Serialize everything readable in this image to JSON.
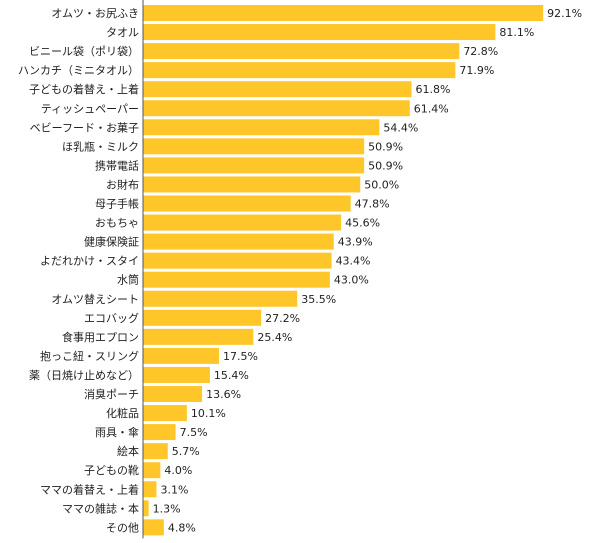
{
  "chart_data": {
    "type": "bar",
    "orientation": "horizontal",
    "categories": [
      "オムツ・お尻ふき",
      "タオル",
      "ビニール袋（ポリ袋）",
      "ハンカチ（ミニタオル）",
      "子どもの着替え・上着",
      "ティッシュペーパー",
      "ベビーフード・お菓子",
      "ほ乳瓶・ミルク",
      "携帯電話",
      "お財布",
      "母子手帳",
      "おもちゃ",
      "健康保険証",
      "よだれかけ・スタイ",
      "水筒",
      "オムツ替えシート",
      "エコバッグ",
      "食事用エプロン",
      "抱っこ紐・スリング",
      "薬（日焼け止めなど）",
      "消臭ポーチ",
      "化粧品",
      "雨具・傘",
      "絵本",
      "子どもの靴",
      "ママの着替え・上着",
      "ママの雑誌・本",
      "その他"
    ],
    "values": [
      92.1,
      81.1,
      72.8,
      71.9,
      61.8,
      61.4,
      54.4,
      50.9,
      50.9,
      50.0,
      47.8,
      45.6,
      43.9,
      43.4,
      43.0,
      35.5,
      27.2,
      25.4,
      17.5,
      15.4,
      13.6,
      10.1,
      7.5,
      5.7,
      4.0,
      3.1,
      1.3,
      4.8
    ],
    "value_labels": [
      "92.1%",
      "81.1%",
      "72.8%",
      "71.9%",
      "61.8%",
      "61.4%",
      "54.4%",
      "50.9%",
      "50.9%",
      "50.0%",
      "47.8%",
      "45.6%",
      "43.9%",
      "43.4%",
      "43.0%",
      "35.5%",
      "27.2%",
      "25.4%",
      "17.5%",
      "15.4%",
      "13.6%",
      "10.1%",
      "7.5%",
      "5.7%",
      "4.0%",
      "3.1%",
      "1.3%",
      "4.8%"
    ],
    "xlim": [
      0,
      100
    ],
    "unit": "%",
    "grid": false,
    "legend": "none"
  },
  "colors": {
    "bar": "#FFC629",
    "axis": "#555555",
    "text": "#222222"
  }
}
